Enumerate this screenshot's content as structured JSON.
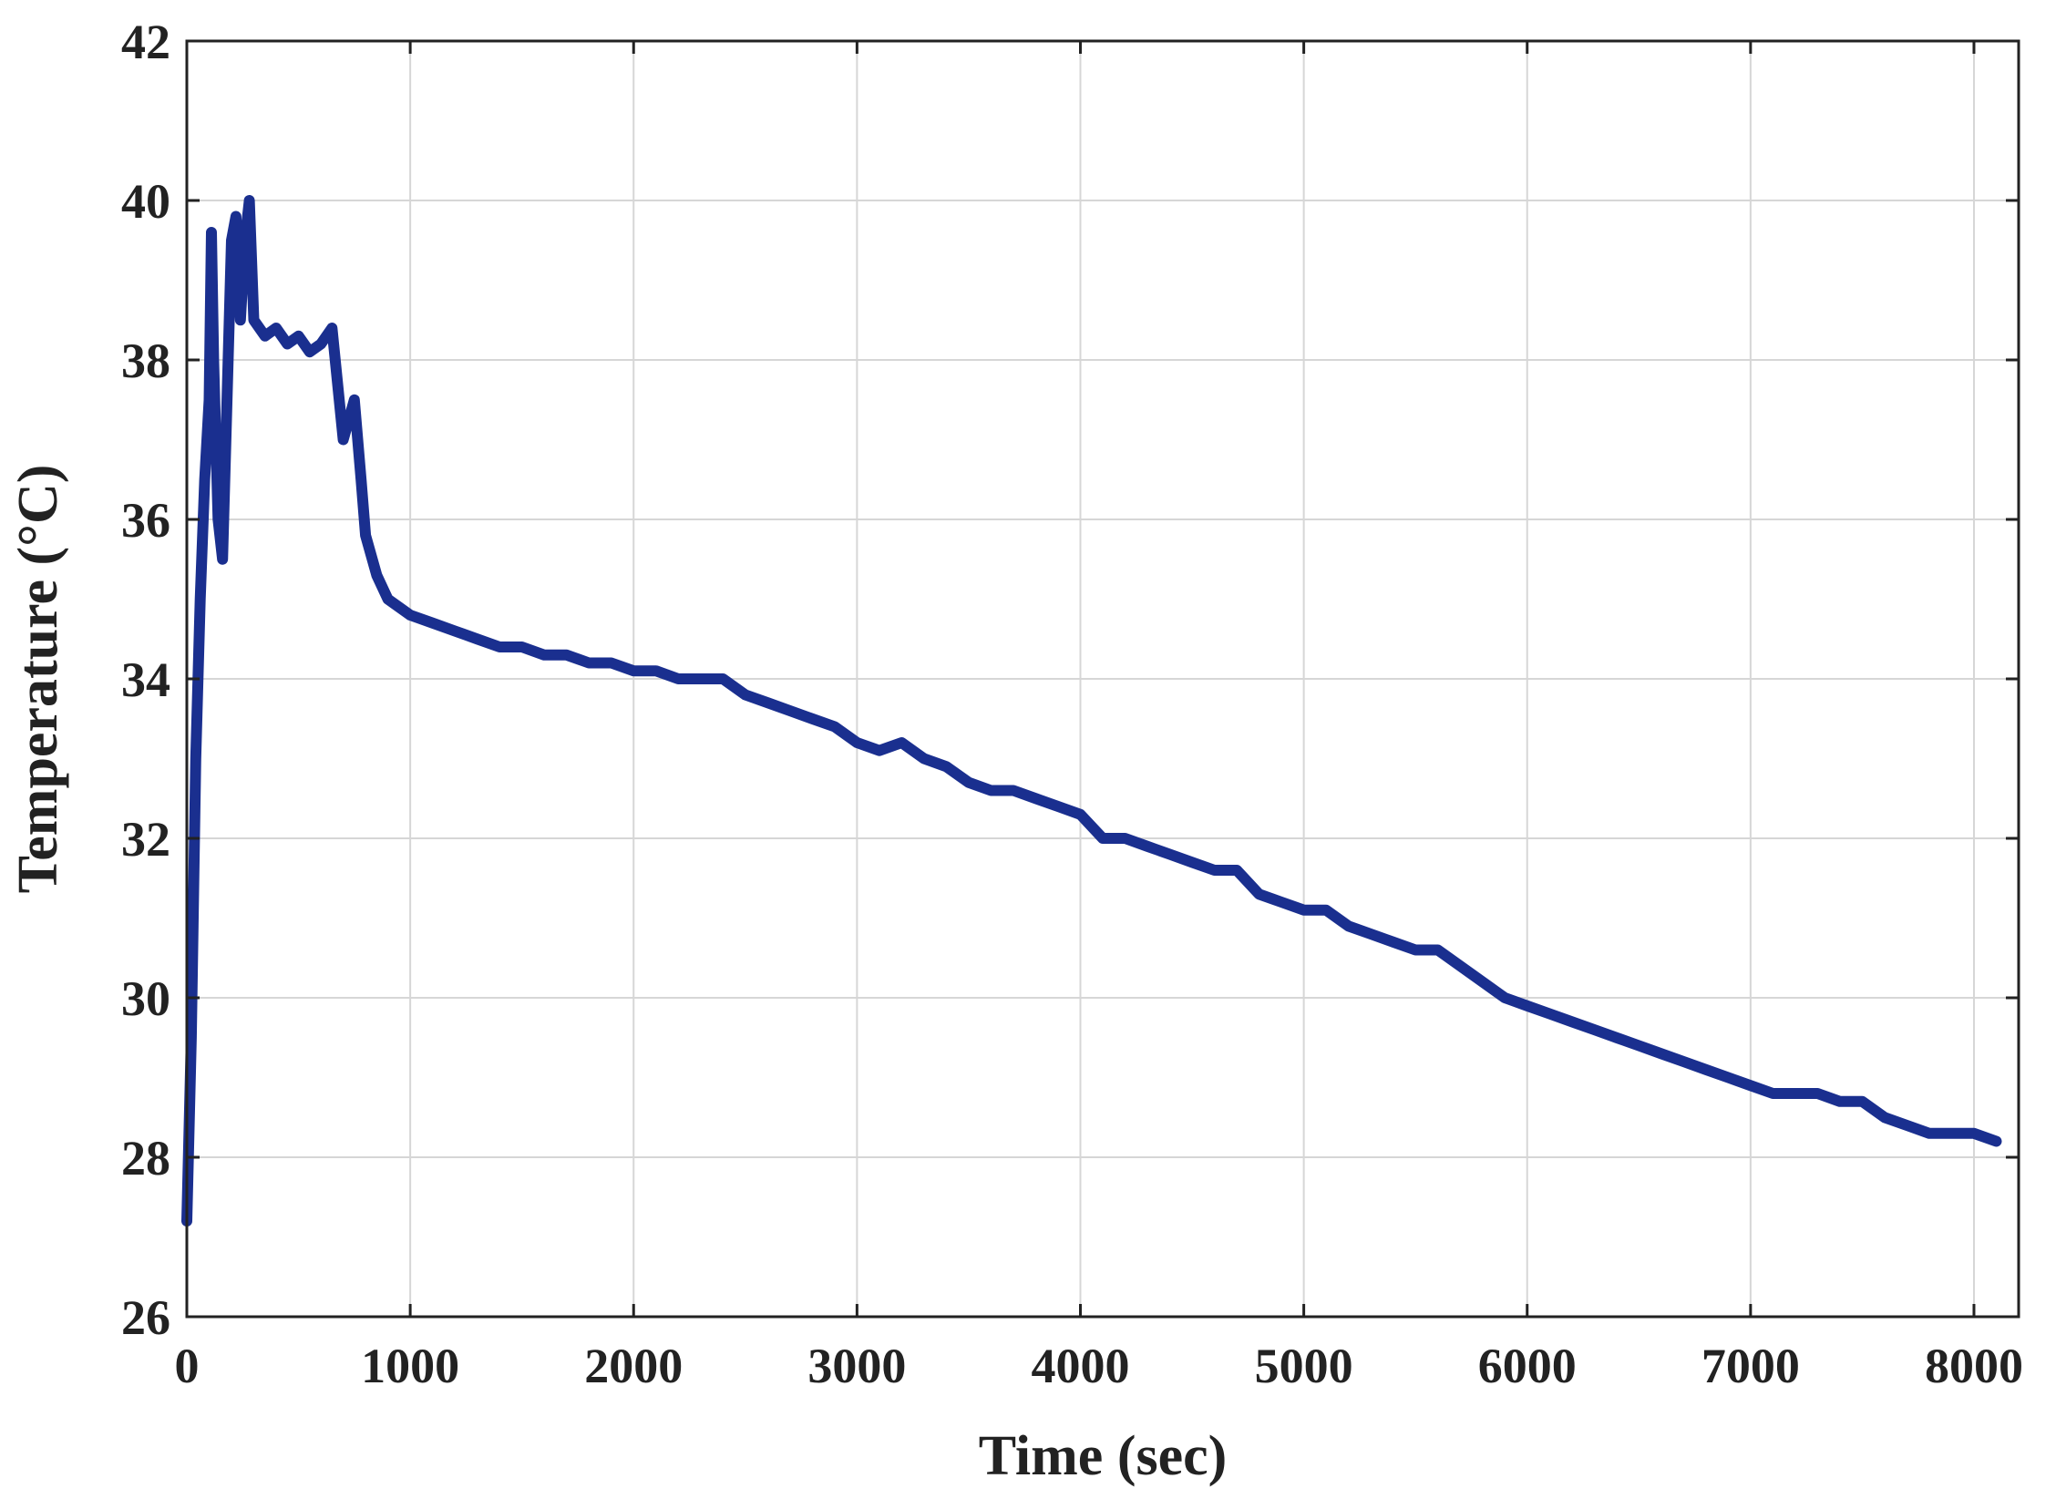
{
  "chart_data": {
    "type": "line",
    "title": "",
    "xlabel": "Time (sec)",
    "ylabel": "Temperature (°C)",
    "xlim": [
      0,
      8200
    ],
    "ylim": [
      26,
      42
    ],
    "xticks": [
      0,
      1000,
      2000,
      3000,
      4000,
      5000,
      6000,
      7000,
      8000
    ],
    "yticks": [
      26,
      28,
      30,
      32,
      34,
      36,
      38,
      40,
      42
    ],
    "grid": true,
    "line_color": "#1A2F8F",
    "series": [
      {
        "name": "",
        "x": [
          0,
          20,
          40,
          60,
          80,
          100,
          110,
          120,
          140,
          160,
          180,
          200,
          220,
          240,
          260,
          280,
          300,
          350,
          400,
          450,
          500,
          550,
          600,
          650,
          700,
          720,
          750,
          780,
          800,
          850,
          900,
          1000,
          1100,
          1200,
          1300,
          1400,
          1500,
          1600,
          1700,
          1800,
          1900,
          2000,
          2100,
          2200,
          2300,
          2400,
          2500,
          2600,
          2700,
          2800,
          2900,
          3000,
          3100,
          3200,
          3300,
          3400,
          3500,
          3600,
          3700,
          3800,
          3900,
          4000,
          4100,
          4200,
          4300,
          4400,
          4500,
          4600,
          4700,
          4800,
          4900,
          5000,
          5100,
          5200,
          5300,
          5400,
          5500,
          5600,
          5700,
          5800,
          5900,
          6000,
          6100,
          6200,
          6300,
          6400,
          6500,
          6600,
          6700,
          6800,
          6900,
          7000,
          7100,
          7200,
          7300,
          7400,
          7500,
          7600,
          7700,
          7800,
          7900,
          8000,
          8100
        ],
        "y": [
          27.2,
          29.5,
          33.0,
          35.0,
          36.5,
          37.5,
          39.6,
          38.0,
          36.0,
          35.5,
          37.5,
          39.5,
          39.8,
          38.5,
          39.5,
          40.0,
          38.5,
          38.3,
          38.4,
          38.2,
          38.3,
          38.1,
          38.2,
          38.4,
          37.0,
          37.2,
          37.5,
          36.5,
          35.8,
          35.3,
          35.0,
          34.8,
          34.7,
          34.6,
          34.5,
          34.4,
          34.4,
          34.3,
          34.3,
          34.2,
          34.2,
          34.1,
          34.1,
          34.0,
          34.0,
          34.0,
          33.8,
          33.7,
          33.6,
          33.5,
          33.4,
          33.2,
          33.1,
          33.2,
          33.0,
          32.9,
          32.7,
          32.6,
          32.6,
          32.5,
          32.4,
          32.3,
          32.0,
          32.0,
          31.9,
          31.8,
          31.7,
          31.6,
          31.6,
          31.3,
          31.2,
          31.1,
          31.1,
          30.9,
          30.8,
          30.7,
          30.6,
          30.6,
          30.4,
          30.2,
          30.0,
          29.9,
          29.8,
          29.7,
          29.6,
          29.5,
          29.4,
          29.3,
          29.2,
          29.1,
          29.0,
          28.9,
          28.8,
          28.8,
          28.8,
          28.7,
          28.7,
          28.5,
          28.4,
          28.3,
          28.3,
          28.3,
          28.2
        ]
      }
    ]
  }
}
